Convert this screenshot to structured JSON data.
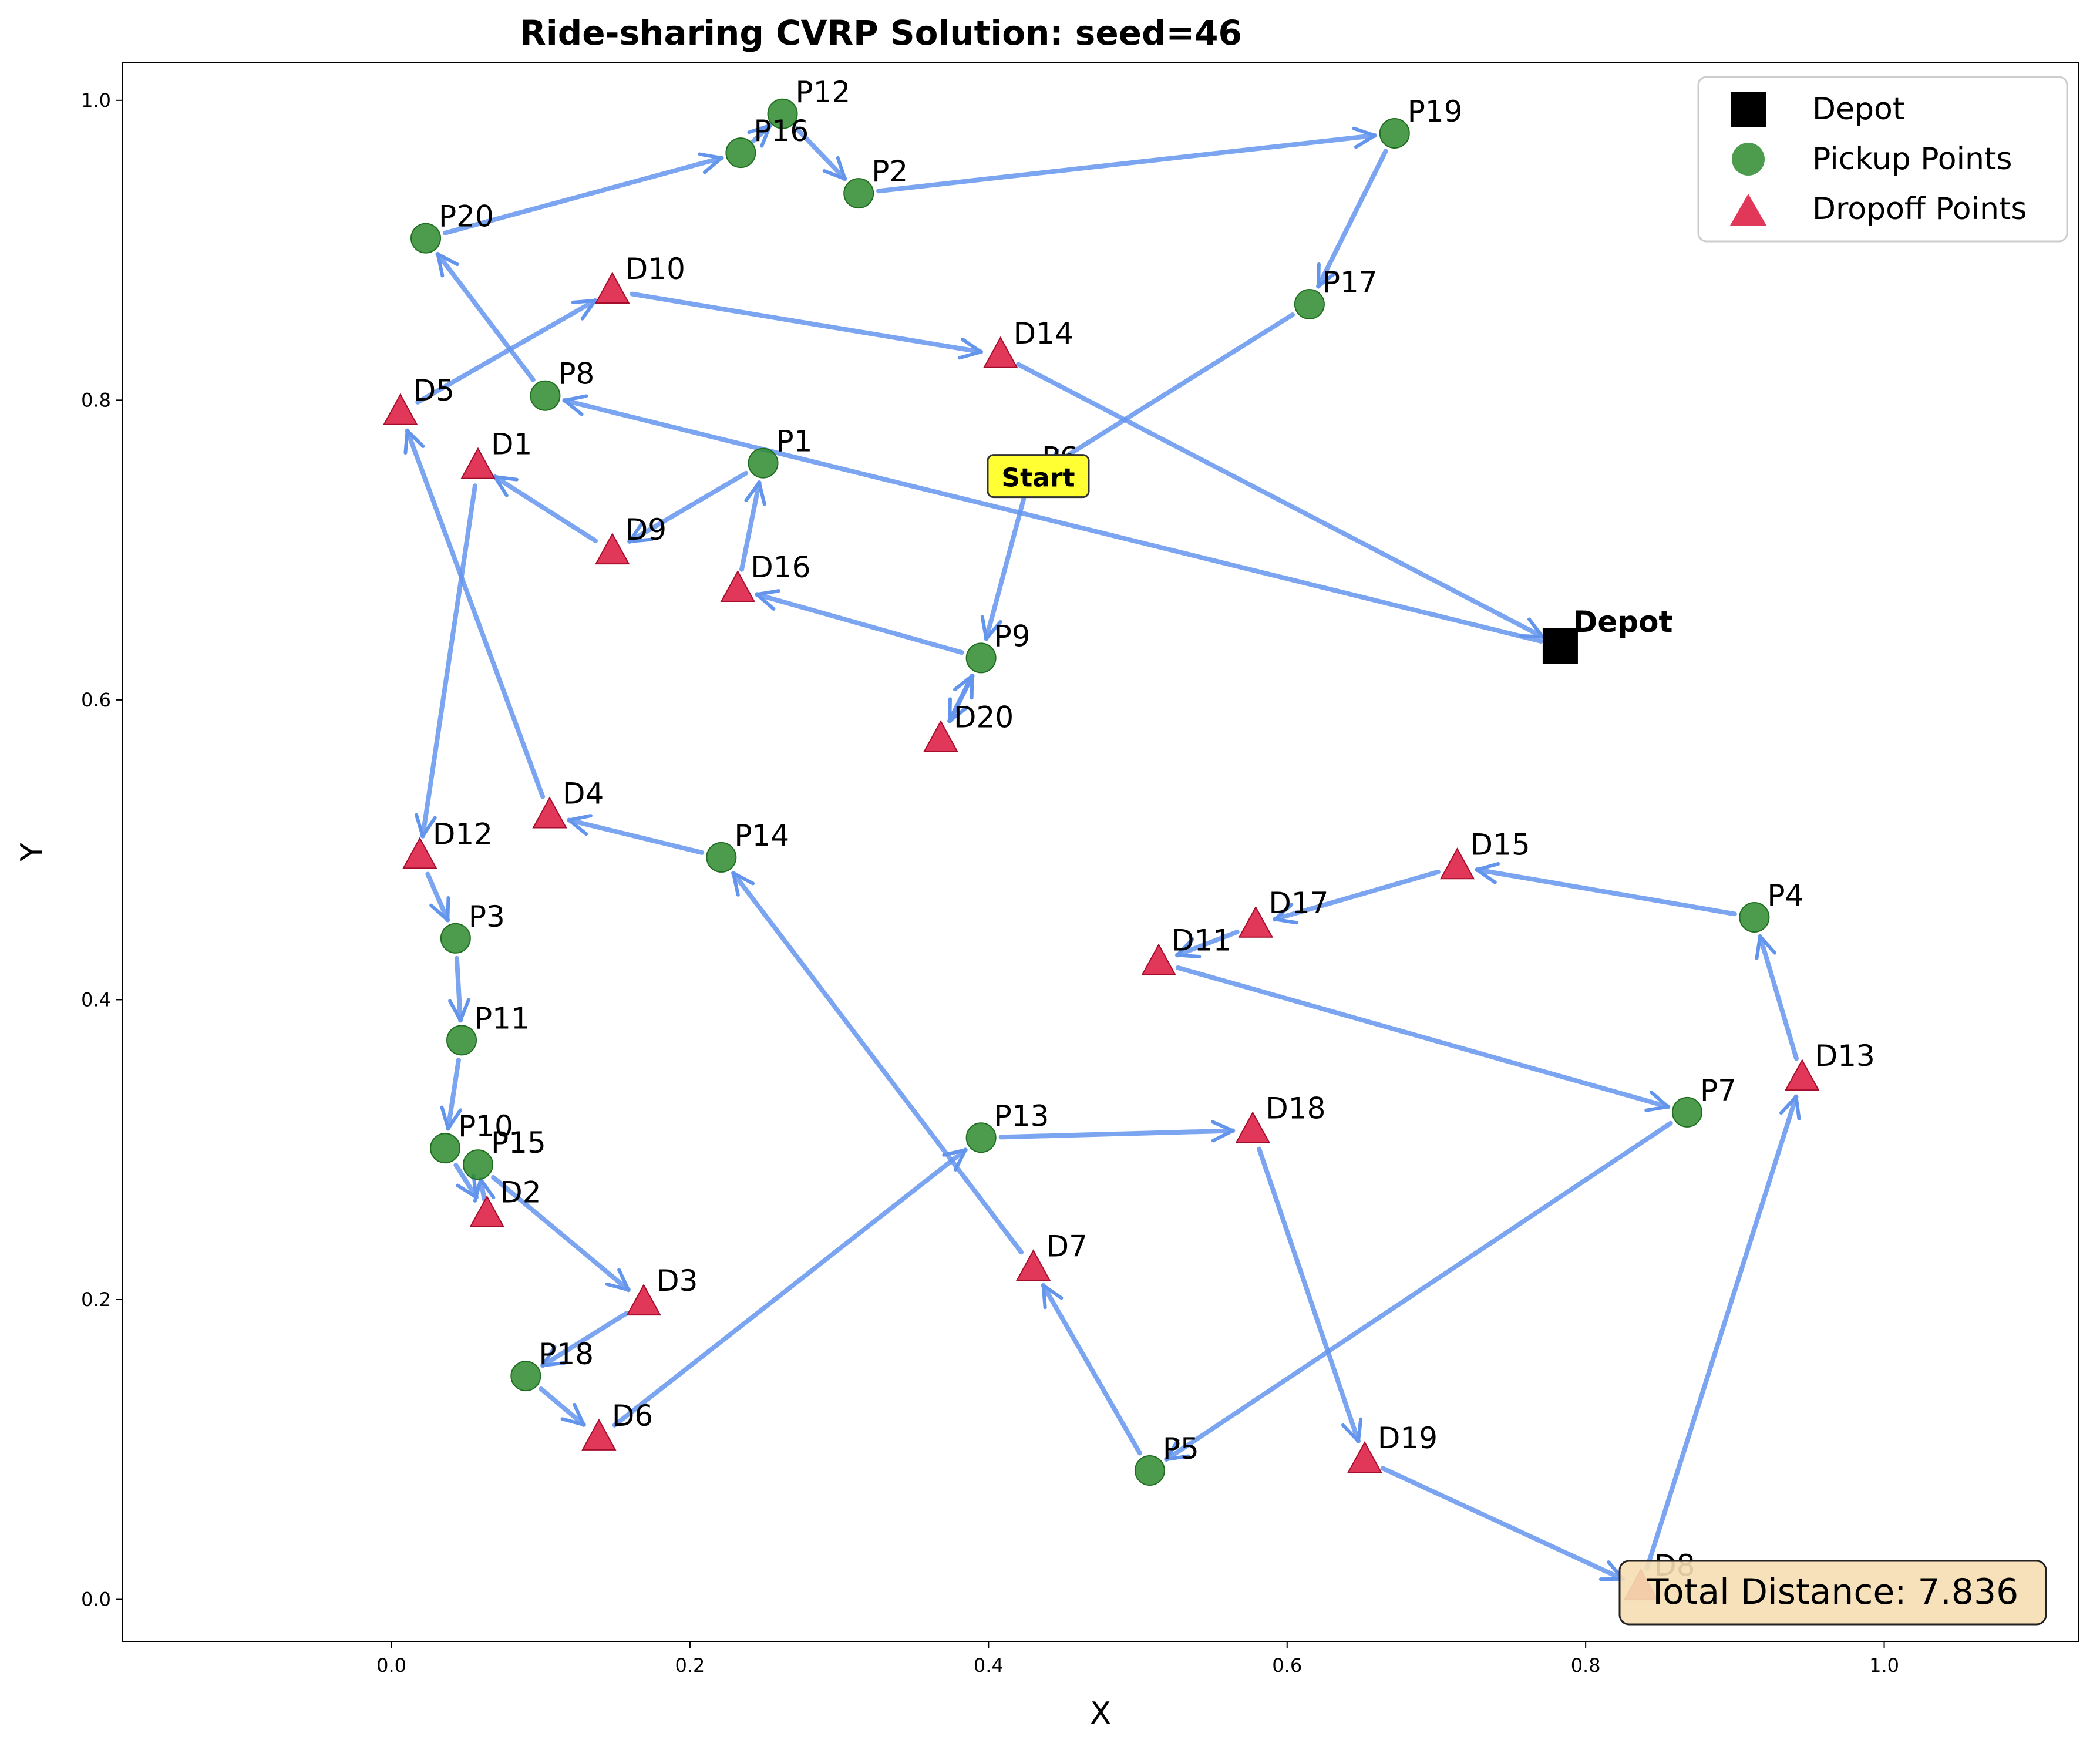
{
  "chart_data": {
    "type": "scatter",
    "title": "Ride-sharing CVRP Solution: seed=46",
    "xlabel": "X",
    "ylabel": "Y",
    "xlim": [
      -0.18,
      1.13
    ],
    "ylim": [
      -0.028,
      1.025
    ],
    "xticks": [
      0.0,
      0.2,
      0.4,
      0.6,
      0.8,
      1.0
    ],
    "yticks": [
      0.0,
      0.2,
      0.4,
      0.6,
      0.8,
      1.0
    ],
    "grid": false,
    "legend_position": "top-right",
    "legend": [
      {
        "label": "Depot",
        "marker": "square"
      },
      {
        "label": "Pickup Points",
        "marker": "circle"
      },
      {
        "label": "Dropoff Points",
        "marker": "triangle"
      }
    ],
    "depot": {
      "name": "Depot",
      "x": 0.783,
      "y": 0.636
    },
    "start": {
      "label": "Start",
      "x": 0.427,
      "y": 0.747
    },
    "total_distance_label": "Total Distance: 7.836",
    "colors": {
      "pickup": "#2e8b2e",
      "dropoff": "#dc143c",
      "depot": "#000000",
      "route": "#6495ed",
      "start_box": "#ffff33",
      "distance_box": "#f5deb3"
    },
    "pickups": [
      {
        "name": "P1",
        "x": 0.249,
        "y": 0.758
      },
      {
        "name": "P2",
        "x": 0.313,
        "y": 0.938
      },
      {
        "name": "P3",
        "x": 0.043,
        "y": 0.441
      },
      {
        "name": "P4",
        "x": 0.913,
        "y": 0.455
      },
      {
        "name": "P5",
        "x": 0.508,
        "y": 0.086
      },
      {
        "name": "P6",
        "x": 0.427,
        "y": 0.747
      },
      {
        "name": "P7",
        "x": 0.868,
        "y": 0.325
      },
      {
        "name": "P8",
        "x": 0.103,
        "y": 0.803
      },
      {
        "name": "P9",
        "x": 0.395,
        "y": 0.628
      },
      {
        "name": "P10",
        "x": 0.036,
        "y": 0.301
      },
      {
        "name": "P11",
        "x": 0.047,
        "y": 0.373
      },
      {
        "name": "P12",
        "x": 0.262,
        "y": 0.991
      },
      {
        "name": "P13",
        "x": 0.395,
        "y": 0.308
      },
      {
        "name": "P14",
        "x": 0.221,
        "y": 0.495
      },
      {
        "name": "P15",
        "x": 0.058,
        "y": 0.29
      },
      {
        "name": "P16",
        "x": 0.234,
        "y": 0.965
      },
      {
        "name": "P17",
        "x": 0.615,
        "y": 0.864
      },
      {
        "name": "P18",
        "x": 0.09,
        "y": 0.149
      },
      {
        "name": "P19",
        "x": 0.672,
        "y": 0.978
      },
      {
        "name": "P20",
        "x": 0.023,
        "y": 0.908
      }
    ],
    "dropoffs": [
      {
        "name": "D1",
        "x": 0.058,
        "y": 0.756
      },
      {
        "name": "D2",
        "x": 0.064,
        "y": 0.257
      },
      {
        "name": "D3",
        "x": 0.169,
        "y": 0.198
      },
      {
        "name": "D4",
        "x": 0.106,
        "y": 0.523
      },
      {
        "name": "D5",
        "x": 0.006,
        "y": 0.792
      },
      {
        "name": "D6",
        "x": 0.139,
        "y": 0.108
      },
      {
        "name": "D7",
        "x": 0.43,
        "y": 0.221
      },
      {
        "name": "D8",
        "x": 0.837,
        "y": 0.008
      },
      {
        "name": "D9",
        "x": 0.148,
        "y": 0.699
      },
      {
        "name": "D10",
        "x": 0.148,
        "y": 0.873
      },
      {
        "name": "D11",
        "x": 0.514,
        "y": 0.425
      },
      {
        "name": "D12",
        "x": 0.019,
        "y": 0.496
      },
      {
        "name": "D13",
        "x": 0.945,
        "y": 0.348
      },
      {
        "name": "D14",
        "x": 0.408,
        "y": 0.83
      },
      {
        "name": "D15",
        "x": 0.714,
        "y": 0.489
      },
      {
        "name": "D16",
        "x": 0.232,
        "y": 0.674
      },
      {
        "name": "D17",
        "x": 0.579,
        "y": 0.45
      },
      {
        "name": "D18",
        "x": 0.577,
        "y": 0.313
      },
      {
        "name": "D19",
        "x": 0.652,
        "y": 0.093
      },
      {
        "name": "D20",
        "x": 0.368,
        "y": 0.574
      }
    ],
    "route": [
      "P6",
      "P9",
      "D20",
      "P9",
      "D16",
      "P1",
      "D9",
      "D1",
      "D12",
      "P3",
      "P11",
      "P10",
      "D2",
      "P15",
      "D3",
      "P18",
      "D6",
      "P13",
      "D18",
      "D19",
      "D8",
      "D13",
      "P4",
      "D15",
      "D17",
      "D11",
      "P7",
      "P5",
      "D7",
      "P14",
      "D4",
      "D5",
      "D10",
      "D14",
      "Depot",
      "P8",
      "P20",
      "P16",
      "P12",
      "P2",
      "P19",
      "P17",
      "P6"
    ]
  }
}
